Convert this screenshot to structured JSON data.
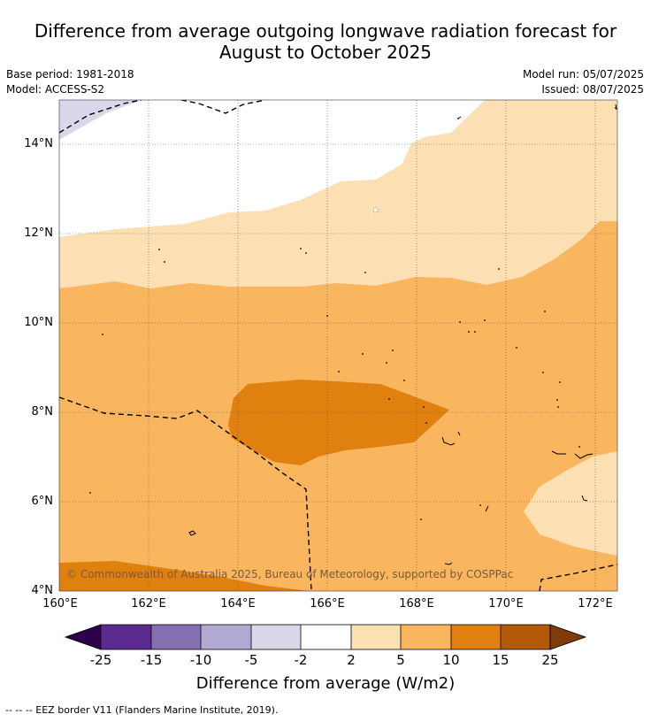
{
  "title_line1": "Difference from average outgoing longwave radiation forecast for",
  "title_line2": "August to October 2025",
  "base_period": "Base period: 1981-2018",
  "model": "Model: ACCESS-S2",
  "model_run": "Model run: 05/07/2025",
  "issued": "Issued: 08/07/2025",
  "lat_labels": [
    "14°N",
    "12°N",
    "10°N",
    "8°N",
    "6°N",
    "4°N"
  ],
  "lon_labels": [
    "160°E",
    "162°E",
    "164°E",
    "166°E",
    "168°E",
    "170°E",
    "172°E"
  ],
  "copyright": "© Commonwealth of Australia 2025, Bureau of Meteorology, supported by COSPPac",
  "colorbar": {
    "ticks": [
      "-25",
      "-15",
      "-10",
      "-5",
      "-2",
      "2",
      "5",
      "10",
      "15",
      "25"
    ],
    "colors": [
      "#5b2a8e",
      "#8470b0",
      "#b1a9d3",
      "#d8d8ea",
      "#ffffff",
      "#fddfb4",
      "#fab55f",
      "#e0800f",
      "#b35806"
    ],
    "low_extend_color": "#2d004b",
    "high_extend_color": "#7f3b08",
    "title": "Difference from average (W/m2)"
  },
  "footnote": "--  --  -- EEZ border V11 (Flanders Marine Institute, 2019)."
}
